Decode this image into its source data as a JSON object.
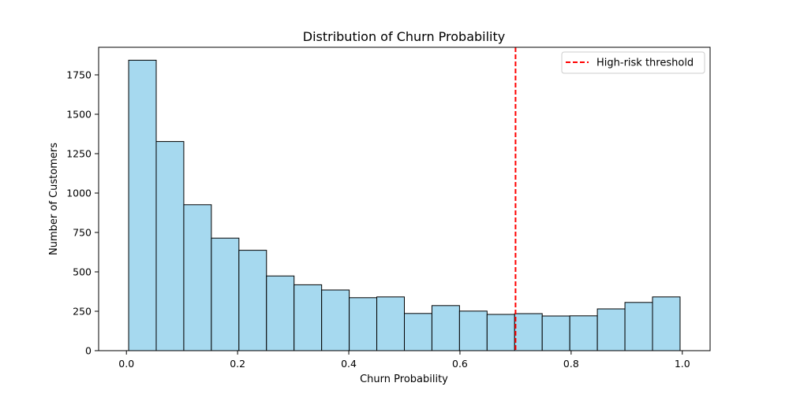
{
  "chart_data": {
    "type": "bar",
    "title": "Distribution of Churn Probability",
    "xlabel": "Churn Probability",
    "ylabel": "Number of Customers",
    "xlim": [
      -0.05,
      1.05
    ],
    "ylim": [
      0,
      1925
    ],
    "x_ticks": [
      0.0,
      0.2,
      0.4,
      0.6,
      0.8,
      1.0
    ],
    "x_tick_labels": [
      "0.0",
      "0.2",
      "0.4",
      "0.6",
      "0.8",
      "1.0"
    ],
    "y_ticks": [
      0,
      250,
      500,
      750,
      1000,
      1250,
      1500,
      1750
    ],
    "y_tick_labels": [
      "0",
      "250",
      "500",
      "750",
      "1000",
      "1250",
      "1500",
      "1750"
    ],
    "bin_start": 0.004,
    "bin_width": 0.0496,
    "values": [
      1843,
      1327,
      926,
      714,
      637,
      474,
      418,
      385,
      336,
      341,
      236,
      286,
      251,
      230,
      235,
      220,
      221,
      265,
      306,
      341
    ],
    "bar_color": "#a6d9ef",
    "bar_edge_color": "#000000",
    "threshold": {
      "x": 0.7,
      "label": "High-risk threshold",
      "color": "#ff0000",
      "style": "dashed"
    },
    "legend_position": "top-right",
    "grid": false
  }
}
